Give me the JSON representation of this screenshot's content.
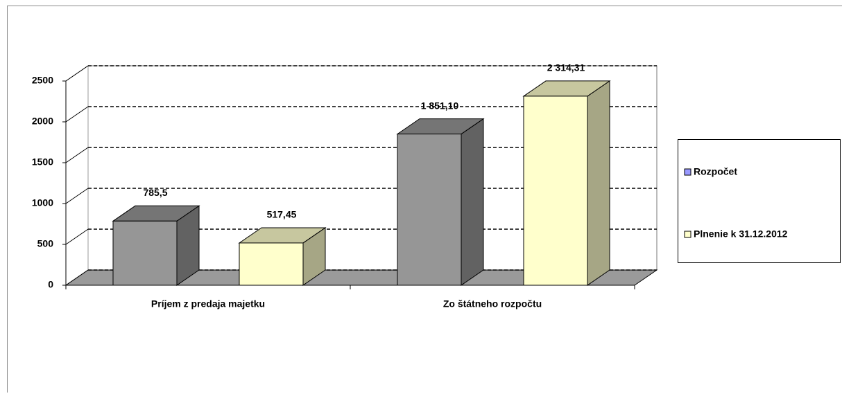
{
  "chart_data": {
    "type": "bar3d",
    "categories": [
      "Príjem z predaja majetku",
      "Zo štátneho rozpočtu"
    ],
    "series": [
      {
        "name": "Rozpočet",
        "color": "#969696",
        "legend_color": "#9999ff",
        "values": [
          785.5,
          1851.1
        ],
        "value_labels": [
          "785,5",
          "1 851,10"
        ]
      },
      {
        "name": "Plnenie k 31.12.2012",
        "color": "#ffffcc",
        "legend_color": "#ffffcc",
        "values": [
          517.45,
          2314.31
        ],
        "value_labels": [
          "517,45",
          "2 314,31"
        ]
      }
    ],
    "ylim": [
      0,
      2500
    ],
    "yticks": [
      0,
      500,
      1000,
      1500,
      2000,
      2500
    ],
    "grid": true,
    "legend": "right"
  }
}
